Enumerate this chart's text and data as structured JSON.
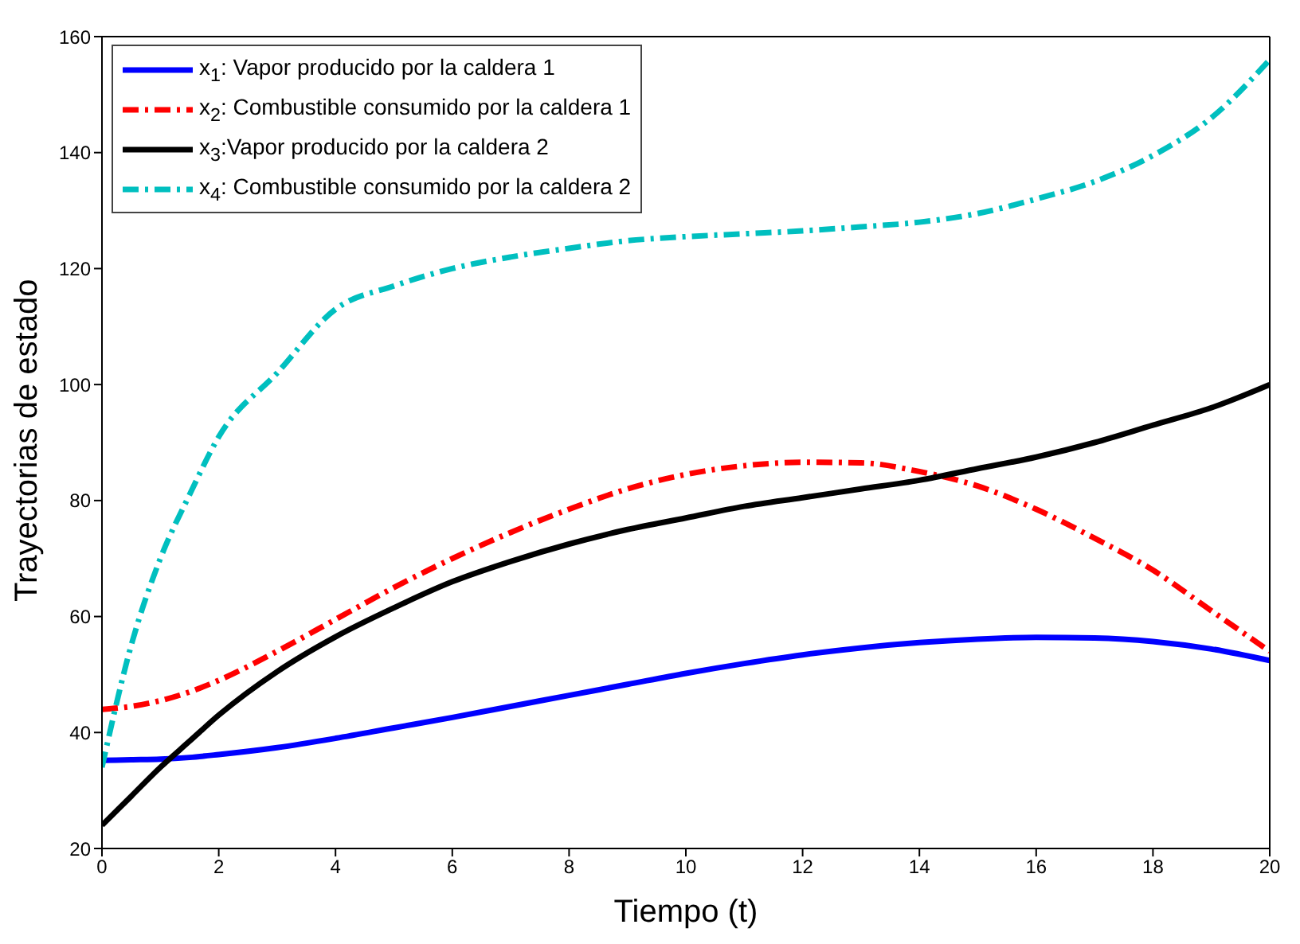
{
  "chart_data": {
    "type": "line",
    "xlabel": "Tiempo (t)",
    "ylabel": "Trayectorias de estado",
    "x": [
      0,
      0.5,
      1,
      1.5,
      2,
      3,
      4,
      5,
      6,
      7,
      8,
      9,
      10,
      11,
      12,
      13,
      14,
      15,
      16,
      17,
      18,
      19,
      20
    ],
    "series": [
      {
        "name": "x$_{1}$: Vapor producido por la caldera 1",
        "color": "#0000ff",
        "line_style": "solid",
        "values": [
          35.2,
          35.3,
          35.4,
          35.7,
          36.2,
          37.4,
          39,
          40.8,
          42.6,
          44.5,
          46.4,
          48.3,
          50.2,
          51.9,
          53.4,
          54.6,
          55.5,
          56.1,
          56.4,
          56.3,
          55.7,
          54.4,
          52.4
        ]
      },
      {
        "name": "x$_{2}$: Combustible consumido por la caldera 1",
        "color": "#ff0000",
        "line_style": "dashdot",
        "values": [
          44,
          44.5,
          45.5,
          47,
          49,
          54,
          59.5,
          65,
          70,
          74.5,
          78.5,
          82,
          84.5,
          86,
          86.6,
          86.5,
          85,
          82.5,
          78.5,
          73.5,
          68,
          61,
          54
        ]
      },
      {
        "name": "x$_{3}$:Vapor producido por la caldera  2",
        "color": "#000000",
        "line_style": "solid",
        "values": [
          24,
          29,
          34,
          38.5,
          43,
          50.5,
          56.5,
          61.5,
          66,
          69.5,
          72.5,
          75,
          77,
          79,
          80.5,
          82,
          83.5,
          85.5,
          87.5,
          90,
          93,
          96,
          100
        ]
      },
      {
        "name": "x$_{4}$: Combustible consumido por la caldera 2",
        "color": "#00bfbf",
        "line_style": "dashdot",
        "values": [
          34,
          55,
          70,
          81,
          91,
          102,
          113,
          117,
          120,
          122,
          123.5,
          124.8,
          125.5,
          126,
          126.5,
          127.2,
          128,
          129.5,
          132,
          135,
          139.5,
          146,
          156
        ]
      }
    ],
    "xlim": [
      0,
      20
    ],
    "xticks": [
      0,
      2,
      4,
      6,
      8,
      10,
      12,
      14,
      16,
      18,
      20
    ],
    "ylim": [
      20,
      160
    ],
    "yticks": [
      20,
      40,
      60,
      80,
      100,
      120,
      140,
      160
    ],
    "grid": false,
    "legend": "top left"
  }
}
